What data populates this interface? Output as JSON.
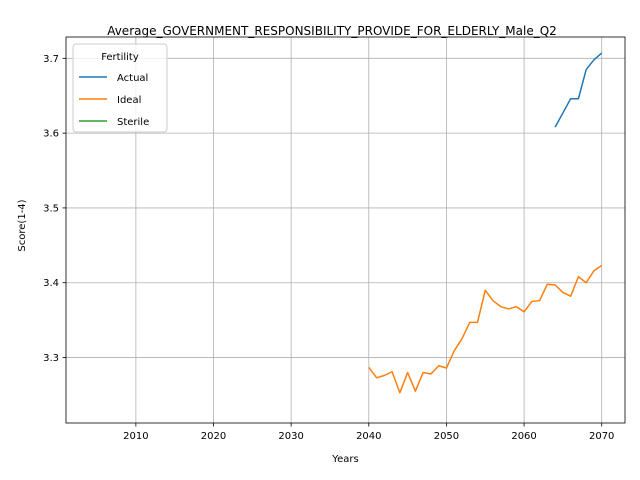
{
  "chart_data": {
    "type": "line",
    "title": "Average_GOVERNMENT_RESPONSIBILITY_PROVIDE_FOR_ELDERLY_Male_Q2",
    "xlabel": "Years",
    "ylabel": "Score(1-4)",
    "xlim": [
      2001,
      2073
    ],
    "ylim": [
      3.2125,
      3.7285
    ],
    "xticks": [
      2010,
      2020,
      2030,
      2040,
      2050,
      2060,
      2070
    ],
    "yticks": [
      3.3,
      3.4,
      3.5,
      3.6,
      3.7
    ],
    "grid": true,
    "legend": {
      "title": "Fertility",
      "placement": "top-left"
    },
    "series": [
      {
        "name": "Actual",
        "color": "#1f77b4",
        "x": [
          2064,
          2065,
          2066,
          2067,
          2068,
          2069,
          2070
        ],
        "y": [
          3.608,
          3.627,
          3.646,
          3.646,
          3.685,
          3.698,
          3.707
        ]
      },
      {
        "name": "Ideal",
        "color": "#ff7f0e",
        "x": [
          2040,
          2041,
          2042,
          2043,
          2044,
          2045,
          2046,
          2047,
          2048,
          2049,
          2050,
          2051,
          2052,
          2053,
          2054,
          2055,
          2056,
          2057,
          2058,
          2059,
          2060,
          2061,
          2062,
          2063,
          2064,
          2065,
          2066,
          2067,
          2068,
          2069,
          2070
        ],
        "y": [
          3.287,
          3.273,
          3.276,
          3.281,
          3.253,
          3.28,
          3.255,
          3.28,
          3.278,
          3.289,
          3.286,
          3.309,
          3.325,
          3.347,
          3.347,
          3.39,
          3.376,
          3.368,
          3.365,
          3.368,
          3.361,
          3.375,
          3.376,
          3.398,
          3.397,
          3.387,
          3.382,
          3.408,
          3.4,
          3.416,
          3.423
        ]
      },
      {
        "name": "Sterile",
        "color": "#2ca02c",
        "x": [],
        "y": []
      }
    ]
  }
}
